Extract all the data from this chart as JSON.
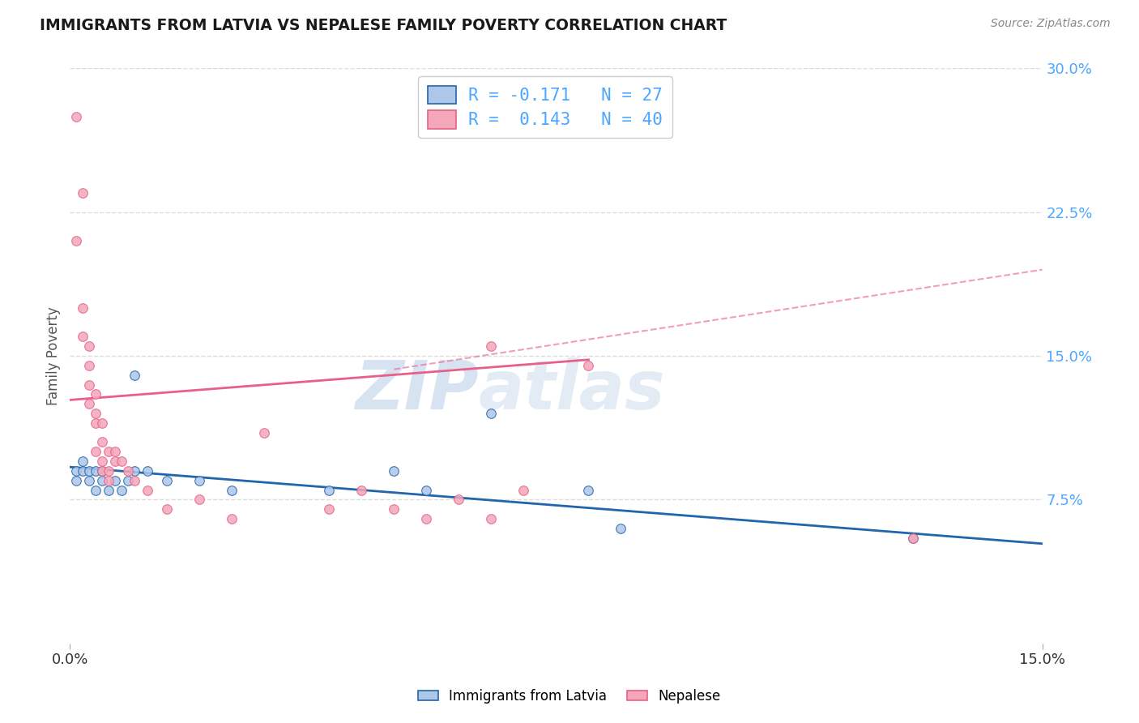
{
  "title": "IMMIGRANTS FROM LATVIA VS NEPALESE FAMILY POVERTY CORRELATION CHART",
  "source": "Source: ZipAtlas.com",
  "ylabel": "Family Poverty",
  "xlim": [
    0.0,
    0.15
  ],
  "ylim": [
    0.0,
    0.3
  ],
  "yticks": [
    0.075,
    0.15,
    0.225,
    0.3
  ],
  "ytick_labels": [
    "7.5%",
    "15.0%",
    "22.5%",
    "30.0%"
  ],
  "xticks": [
    0.0,
    0.15
  ],
  "xtick_labels": [
    "0.0%",
    "15.0%"
  ],
  "legend_entries": [
    {
      "label": "R = -0.171   N = 27",
      "color": "#aec6e8"
    },
    {
      "label": "R =  0.143   N = 40",
      "color": "#f4a7b9"
    }
  ],
  "legend_labels_bottom": [
    "Immigrants from Latvia",
    "Nepalese"
  ],
  "scatter_latvia": [
    [
      0.001,
      0.09
    ],
    [
      0.001,
      0.085
    ],
    [
      0.002,
      0.09
    ],
    [
      0.002,
      0.095
    ],
    [
      0.003,
      0.085
    ],
    [
      0.003,
      0.09
    ],
    [
      0.004,
      0.08
    ],
    [
      0.004,
      0.09
    ],
    [
      0.005,
      0.085
    ],
    [
      0.005,
      0.09
    ],
    [
      0.006,
      0.08
    ],
    [
      0.007,
      0.085
    ],
    [
      0.008,
      0.08
    ],
    [
      0.009,
      0.085
    ],
    [
      0.01,
      0.14
    ],
    [
      0.01,
      0.09
    ],
    [
      0.012,
      0.09
    ],
    [
      0.015,
      0.085
    ],
    [
      0.02,
      0.085
    ],
    [
      0.025,
      0.08
    ],
    [
      0.04,
      0.08
    ],
    [
      0.05,
      0.09
    ],
    [
      0.055,
      0.08
    ],
    [
      0.065,
      0.12
    ],
    [
      0.08,
      0.08
    ],
    [
      0.085,
      0.06
    ],
    [
      0.13,
      0.055
    ]
  ],
  "scatter_nepalese": [
    [
      0.001,
      0.275
    ],
    [
      0.001,
      0.21
    ],
    [
      0.002,
      0.175
    ],
    [
      0.002,
      0.235
    ],
    [
      0.002,
      0.16
    ],
    [
      0.003,
      0.155
    ],
    [
      0.003,
      0.145
    ],
    [
      0.003,
      0.135
    ],
    [
      0.003,
      0.125
    ],
    [
      0.004,
      0.13
    ],
    [
      0.004,
      0.12
    ],
    [
      0.004,
      0.115
    ],
    [
      0.004,
      0.1
    ],
    [
      0.005,
      0.115
    ],
    [
      0.005,
      0.105
    ],
    [
      0.005,
      0.095
    ],
    [
      0.005,
      0.09
    ],
    [
      0.006,
      0.1
    ],
    [
      0.006,
      0.09
    ],
    [
      0.006,
      0.085
    ],
    [
      0.007,
      0.1
    ],
    [
      0.007,
      0.095
    ],
    [
      0.008,
      0.095
    ],
    [
      0.009,
      0.09
    ],
    [
      0.01,
      0.085
    ],
    [
      0.012,
      0.08
    ],
    [
      0.015,
      0.07
    ],
    [
      0.02,
      0.075
    ],
    [
      0.025,
      0.065
    ],
    [
      0.03,
      0.11
    ],
    [
      0.04,
      0.07
    ],
    [
      0.045,
      0.08
    ],
    [
      0.05,
      0.07
    ],
    [
      0.055,
      0.065
    ],
    [
      0.06,
      0.075
    ],
    [
      0.065,
      0.065
    ],
    [
      0.065,
      0.155
    ],
    [
      0.07,
      0.08
    ],
    [
      0.08,
      0.145
    ],
    [
      0.13,
      0.055
    ]
  ],
  "line_latvia": {
    "x": [
      0.0,
      0.15
    ],
    "y": [
      0.092,
      0.052
    ]
  },
  "line_nepalese_solid": {
    "x": [
      0.0,
      0.08
    ],
    "y": [
      0.127,
      0.148
    ]
  },
  "line_nepalese_dashed": {
    "x": [
      0.05,
      0.15
    ],
    "y": [
      0.143,
      0.195
    ]
  },
  "line_latvia_color": "#2166ac",
  "line_nepalese_color": "#e8608a",
  "scatter_latvia_color": "#aec6e8",
  "scatter_nepalese_color": "#f4a7b9",
  "watermark_top": "ZIP",
  "watermark_bottom": "atlas",
  "background_color": "#ffffff",
  "grid_color": "#dddddd"
}
